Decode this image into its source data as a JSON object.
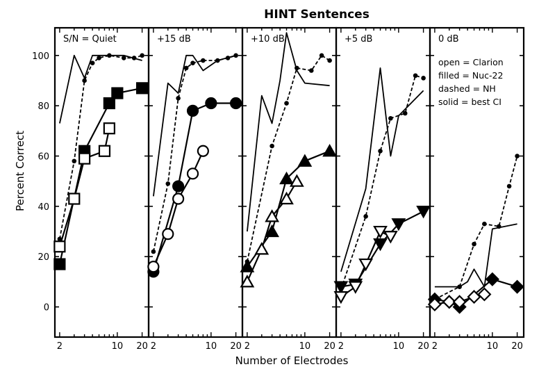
{
  "chart_data": {
    "type": "line",
    "title": "HINT Sentences",
    "xlabel": "Number of Electrodes",
    "ylabel": "Percent Correct",
    "xscale": "log",
    "xlim": [
      1.75,
      24
    ],
    "ylim": [
      -12,
      111
    ],
    "x_ticks": [
      2,
      10,
      20
    ],
    "y_ticks": [
      0,
      20,
      40,
      60,
      80,
      100
    ],
    "legend": [
      "open = Clarion",
      "filled = Nuc-22",
      "dashed = NH",
      "solid = best CI"
    ],
    "legend_position": "top-right of last panel",
    "panels": [
      {
        "title": "S/N = Quiet",
        "series": [
          {
            "style": "dashed",
            "marker": "dot",
            "x": [
              2,
              3,
              4,
              5,
              6,
              8,
              12,
              16,
              20
            ],
            "y": [
              27,
              58,
              90,
              97,
              99,
              100,
              99,
              99,
              100
            ]
          },
          {
            "style": "solid",
            "x": [
              2,
              3,
              4,
              5,
              6,
              8,
              12,
              20
            ],
            "y": [
              73,
              100,
              91,
              100,
              100,
              100,
              100,
              98
            ]
          },
          {
            "style": "solid",
            "marker": "filled-square",
            "x": [
              2,
              4,
              8,
              10,
              20
            ],
            "y": [
              17,
              62,
              81,
              85,
              87
            ]
          },
          {
            "style": "solid",
            "marker": "open-square",
            "x": [
              2,
              3,
              4,
              7,
              8
            ],
            "y": [
              24,
              43,
              59,
              62,
              71
            ]
          }
        ]
      },
      {
        "title": "+15 dB",
        "series": [
          {
            "style": "dashed",
            "marker": "dot",
            "x": [
              2,
              3,
              4,
              5,
              6,
              8,
              12,
              16,
              20
            ],
            "y": [
              22,
              49,
              83,
              95,
              97,
              98,
              98,
              99,
              100
            ]
          },
          {
            "style": "solid",
            "x": [
              2,
              3,
              4,
              5,
              6,
              8,
              12,
              20
            ],
            "y": [
              44,
              89,
              85,
              100,
              100,
              94,
              98,
              100
            ]
          },
          {
            "style": "solid",
            "marker": "filled-circle",
            "x": [
              2,
              4,
              6,
              10,
              20
            ],
            "y": [
              14,
              48,
              78,
              81,
              81
            ]
          },
          {
            "style": "solid",
            "marker": "open-circle",
            "x": [
              2,
              3,
              4,
              6,
              8
            ],
            "y": [
              16,
              29,
              43,
              53,
              62
            ]
          }
        ]
      },
      {
        "title": "+10 dB",
        "series": [
          {
            "style": "dashed",
            "marker": "dot",
            "x": [
              2,
              4,
              6,
              8,
              12,
              16,
              20
            ],
            "y": [
              18,
              64,
              81,
              95,
              94,
              100,
              98
            ]
          },
          {
            "style": "solid",
            "x": [
              2,
              3,
              4,
              5,
              6,
              8,
              10,
              20
            ],
            "y": [
              30,
              84,
              73,
              90,
              109,
              94,
              89,
              88
            ]
          },
          {
            "style": "solid",
            "marker": "filled-triangle",
            "x": [
              2,
              4,
              6,
              10,
              20
            ],
            "y": [
              16,
              30,
              51,
              58,
              62
            ]
          },
          {
            "style": "solid",
            "marker": "open-triangle",
            "x": [
              2,
              3,
              4,
              6,
              8
            ],
            "y": [
              10,
              23,
              36,
              43,
              50
            ]
          }
        ]
      },
      {
        "title": "+5 dB",
        "series": [
          {
            "style": "dashed",
            "marker": "dot",
            "x": [
              2,
              4,
              6,
              8,
              12,
              16,
              20
            ],
            "y": [
              7,
              36,
              62,
              75,
              77,
              92,
              91
            ]
          },
          {
            "style": "solid",
            "x": [
              2,
              4,
              6,
              8,
              10,
              20
            ],
            "y": [
              14,
              47,
              95,
              60,
              76,
              86
            ]
          },
          {
            "style": "solid",
            "marker": "filled-inverted-triangle",
            "x": [
              2,
              3,
              6,
              10,
              20
            ],
            "y": [
              8,
              9,
              25,
              33,
              38
            ]
          },
          {
            "style": "solid",
            "marker": "open-inverted-triangle",
            "x": [
              2,
              3,
              4,
              6,
              8
            ],
            "y": [
              4,
              8,
              17,
              30,
              28
            ]
          }
        ]
      },
      {
        "title": "0 dB",
        "series": [
          {
            "style": "dashed",
            "marker": "dot",
            "x": [
              2,
              4,
              6,
              8,
              12,
              16,
              20
            ],
            "y": [
              3,
              8,
              25,
              33,
              32,
              48,
              60
            ]
          },
          {
            "style": "solid",
            "x": [
              2,
              3,
              4,
              5,
              6,
              8,
              10,
              20
            ],
            "y": [
              8,
              8,
              8,
              10,
              15,
              8,
              31,
              33
            ]
          },
          {
            "style": "solid",
            "marker": "filled-diamond",
            "x": [
              2,
              3,
              4,
              10,
              20
            ],
            "y": [
              3,
              2,
              0,
              11,
              8
            ]
          },
          {
            "style": "solid",
            "marker": "open-diamond",
            "x": [
              2,
              3,
              4,
              6,
              8
            ],
            "y": [
              1,
              2,
              2,
              4,
              5
            ]
          }
        ]
      }
    ]
  }
}
